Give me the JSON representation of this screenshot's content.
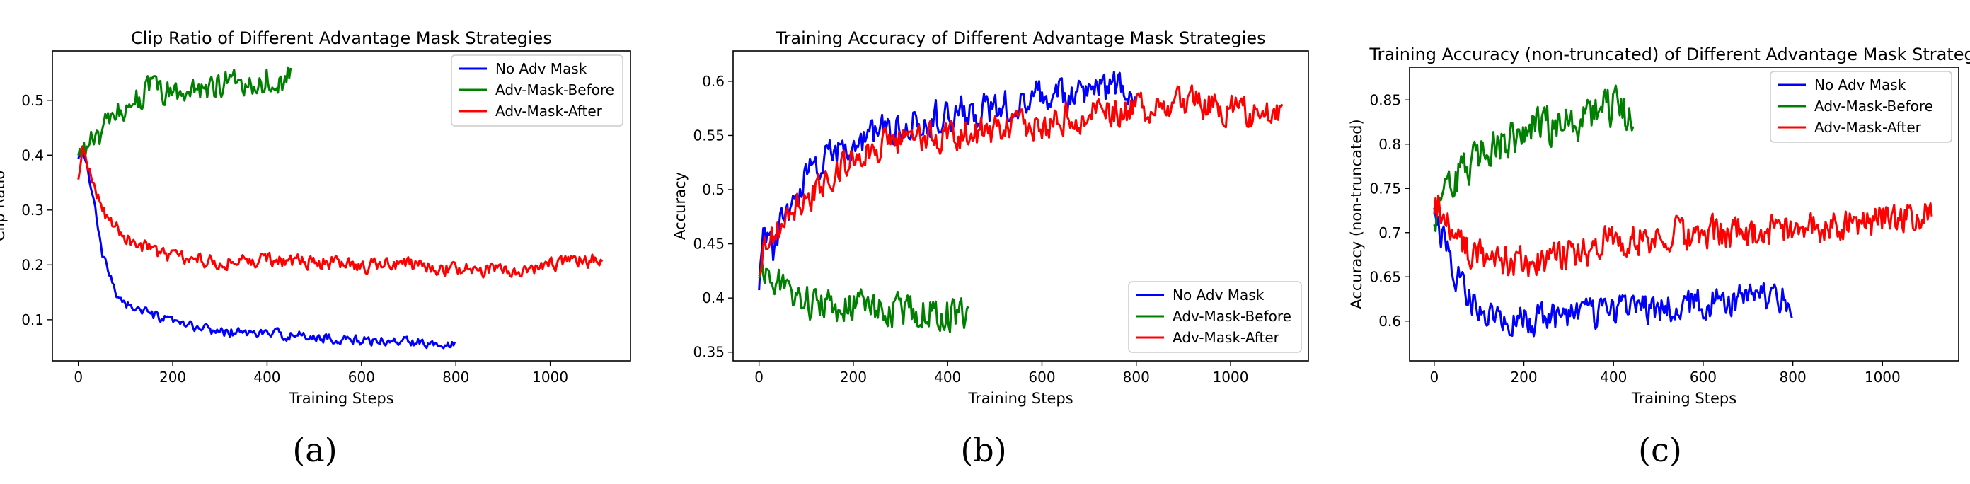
{
  "colors": {
    "series_1": "#0000ff",
    "series_2": "#008000",
    "series_3": "#ff0000"
  },
  "chart_data": [
    {
      "type": "line",
      "title": "Clip Ratio of Different Advantage Mask Strategies",
      "xlabel": "Training Steps",
      "ylabel": "Clip Ratio",
      "caption": "(a)",
      "xlim": [
        -55,
        1170
      ],
      "ylim": [
        0.025,
        0.59
      ],
      "xticks": [
        0,
        200,
        400,
        600,
        800,
        1000
      ],
      "yticks": [
        0.1,
        0.2,
        0.3,
        0.4,
        0.5
      ],
      "legend": "top-right",
      "series": [
        {
          "name": "No Adv Mask",
          "color": "#0000ff",
          "end": 800,
          "noise": 0.006,
          "knots": [
            [
              0,
              0.39
            ],
            [
              10,
              0.41
            ],
            [
              30,
              0.33
            ],
            [
              50,
              0.22
            ],
            [
              80,
              0.15
            ],
            [
              100,
              0.13
            ],
            [
              150,
              0.11
            ],
            [
              200,
              0.095
            ],
            [
              300,
              0.078
            ],
            [
              400,
              0.075
            ],
            [
              500,
              0.068
            ],
            [
              600,
              0.062
            ],
            [
              700,
              0.06
            ],
            [
              800,
              0.057
            ]
          ]
        },
        {
          "name": "Adv-Mask-Before",
          "color": "#008000",
          "end": 450,
          "noise": 0.018,
          "knots": [
            [
              0,
              0.39
            ],
            [
              10,
              0.41
            ],
            [
              50,
              0.44
            ],
            [
              100,
              0.49
            ],
            [
              150,
              0.52
            ],
            [
              200,
              0.51
            ],
            [
              250,
              0.52
            ],
            [
              300,
              0.53
            ],
            [
              350,
              0.53
            ],
            [
              400,
              0.54
            ],
            [
              450,
              0.54
            ]
          ]
        },
        {
          "name": "Adv-Mask-After",
          "color": "#ff0000",
          "end": 1110,
          "noise": 0.009,
          "knots": [
            [
              0,
              0.35
            ],
            [
              10,
              0.41
            ],
            [
              30,
              0.35
            ],
            [
              60,
              0.29
            ],
            [
              100,
              0.25
            ],
            [
              150,
              0.23
            ],
            [
              200,
              0.215
            ],
            [
              300,
              0.205
            ],
            [
              400,
              0.21
            ],
            [
              500,
              0.205
            ],
            [
              600,
              0.198
            ],
            [
              700,
              0.2
            ],
            [
              800,
              0.19
            ],
            [
              900,
              0.19
            ],
            [
              1000,
              0.2
            ],
            [
              1110,
              0.21
            ]
          ]
        }
      ]
    },
    {
      "type": "line",
      "title": "Training Accuracy of Different Advantage Mask Strategies",
      "xlabel": "Training Steps",
      "ylabel": "Accuracy",
      "caption": "(b)",
      "xlim": [
        -55,
        1165
      ],
      "ylim": [
        0.342,
        0.628
      ],
      "xticks": [
        0,
        200,
        400,
        600,
        800,
        1000
      ],
      "yticks": [
        0.35,
        0.4,
        0.45,
        0.5,
        0.55,
        0.6
      ],
      "legend": "bottom-right",
      "series": [
        {
          "name": "No Adv Mask",
          "color": "#0000ff",
          "end": 800,
          "noise": 0.011,
          "knots": [
            [
              0,
              0.42
            ],
            [
              10,
              0.46
            ],
            [
              30,
              0.44
            ],
            [
              50,
              0.47
            ],
            [
              100,
              0.51
            ],
            [
              150,
              0.53
            ],
            [
              200,
              0.54
            ],
            [
              300,
              0.56
            ],
            [
              400,
              0.57
            ],
            [
              500,
              0.575
            ],
            [
              600,
              0.585
            ],
            [
              700,
              0.59
            ],
            [
              800,
              0.595
            ]
          ]
        },
        {
          "name": "Adv-Mask-Before",
          "color": "#008000",
          "end": 445,
          "noise": 0.011,
          "knots": [
            [
              0,
              0.43
            ],
            [
              10,
              0.42
            ],
            [
              30,
              0.42
            ],
            [
              50,
              0.41
            ],
            [
              100,
              0.395
            ],
            [
              150,
              0.39
            ],
            [
              200,
              0.395
            ],
            [
              250,
              0.39
            ],
            [
              300,
              0.39
            ],
            [
              350,
              0.388
            ],
            [
              400,
              0.385
            ],
            [
              445,
              0.385
            ]
          ]
        },
        {
          "name": "Adv-Mask-After",
          "color": "#ff0000",
          "end": 1110,
          "noise": 0.01,
          "knots": [
            [
              0,
              0.43
            ],
            [
              10,
              0.44
            ],
            [
              50,
              0.47
            ],
            [
              100,
              0.49
            ],
            [
              150,
              0.51
            ],
            [
              200,
              0.53
            ],
            [
              300,
              0.545
            ],
            [
              400,
              0.55
            ],
            [
              500,
              0.555
            ],
            [
              600,
              0.56
            ],
            [
              700,
              0.57
            ],
            [
              800,
              0.575
            ],
            [
              900,
              0.58
            ],
            [
              1000,
              0.575
            ],
            [
              1110,
              0.565
            ]
          ]
        }
      ]
    },
    {
      "type": "line",
      "title": "Training Accuracy (non-truncated) of Different Advantage Mask Strategies",
      "xlabel": "Training Steps",
      "ylabel": "Accuracy (non-truncated)",
      "caption": "(c)",
      "xlim": [
        -55,
        1170
      ],
      "ylim": [
        0.555,
        0.887
      ],
      "xticks": [
        0,
        200,
        400,
        600,
        800,
        1000
      ],
      "yticks": [
        0.6,
        0.65,
        0.7,
        0.75,
        0.8,
        0.85
      ],
      "legend": "top-right",
      "series": [
        {
          "name": "No Adv Mask",
          "color": "#0000ff",
          "end": 800,
          "noise": 0.012,
          "knots": [
            [
              0,
              0.73
            ],
            [
              10,
              0.71
            ],
            [
              30,
              0.68
            ],
            [
              60,
              0.64
            ],
            [
              100,
              0.61
            ],
            [
              150,
              0.6
            ],
            [
              200,
              0.598
            ],
            [
              300,
              0.605
            ],
            [
              400,
              0.61
            ],
            [
              500,
              0.615
            ],
            [
              600,
              0.62
            ],
            [
              700,
              0.625
            ],
            [
              800,
              0.625
            ]
          ]
        },
        {
          "name": "Adv-Mask-Before",
          "color": "#008000",
          "end": 445,
          "noise": 0.016,
          "knots": [
            [
              0,
              0.71
            ],
            [
              10,
              0.73
            ],
            [
              30,
              0.74
            ],
            [
              60,
              0.77
            ],
            [
              100,
              0.79
            ],
            [
              150,
              0.8
            ],
            [
              200,
              0.81
            ],
            [
              250,
              0.82
            ],
            [
              300,
              0.825
            ],
            [
              350,
              0.835
            ],
            [
              400,
              0.84
            ],
            [
              445,
              0.83
            ]
          ]
        },
        {
          "name": "Adv-Mask-After",
          "color": "#ff0000",
          "end": 1110,
          "noise": 0.013,
          "knots": [
            [
              0,
              0.72
            ],
            [
              10,
              0.73
            ],
            [
              50,
              0.69
            ],
            [
              100,
              0.675
            ],
            [
              150,
              0.67
            ],
            [
              200,
              0.665
            ],
            [
              300,
              0.675
            ],
            [
              400,
              0.69
            ],
            [
              500,
              0.695
            ],
            [
              600,
              0.7
            ],
            [
              700,
              0.7
            ],
            [
              800,
              0.705
            ],
            [
              900,
              0.71
            ],
            [
              1000,
              0.715
            ],
            [
              1100,
              0.72
            ],
            [
              1110,
              0.715
            ]
          ]
        }
      ]
    }
  ]
}
